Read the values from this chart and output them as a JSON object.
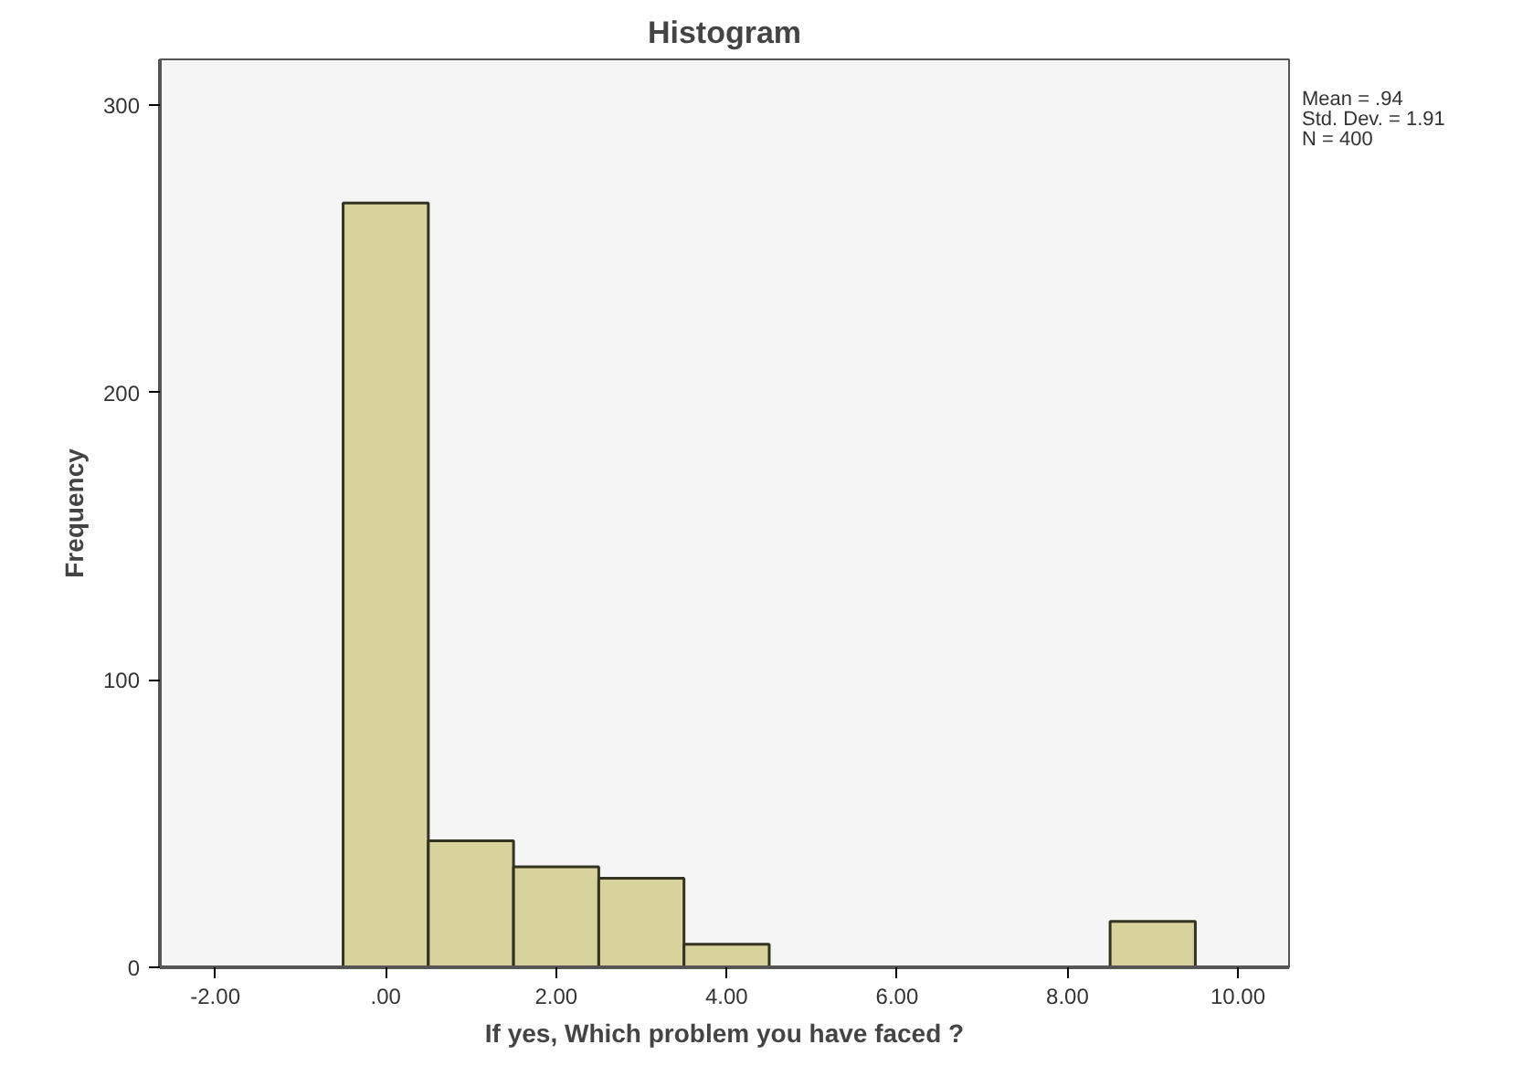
{
  "chart_data": {
    "type": "histogram",
    "title": "Histogram",
    "xlabel": "If yes, Which problem you have faced ?",
    "ylabel": "Frequency",
    "bins": [
      -0.5,
      0.5,
      1.5,
      2.5,
      3.5,
      4.5,
      5.5,
      6.5,
      7.5,
      8.5,
      9.5
    ],
    "values": [
      266,
      44,
      35,
      31,
      8,
      0,
      0,
      0,
      0,
      16
    ],
    "color": "#d8d29c",
    "xlim": [
      -2.65,
      10.6
    ],
    "ylim": [
      0,
      316
    ],
    "xticks": [
      {
        "value": -2,
        "label": "-2.00"
      },
      {
        "value": 0,
        "label": ".00"
      },
      {
        "value": 2,
        "label": "2.00"
      },
      {
        "value": 4,
        "label": "4.00"
      },
      {
        "value": 6,
        "label": "6.00"
      },
      {
        "value": 8,
        "label": "8.00"
      },
      {
        "value": 10,
        "label": "10.00"
      }
    ],
    "yticks": [
      0,
      100,
      200,
      300
    ],
    "grid": false,
    "annotations": [
      "Mean = .94",
      "Std. Dev. = 1.91",
      "N = 400"
    ]
  }
}
